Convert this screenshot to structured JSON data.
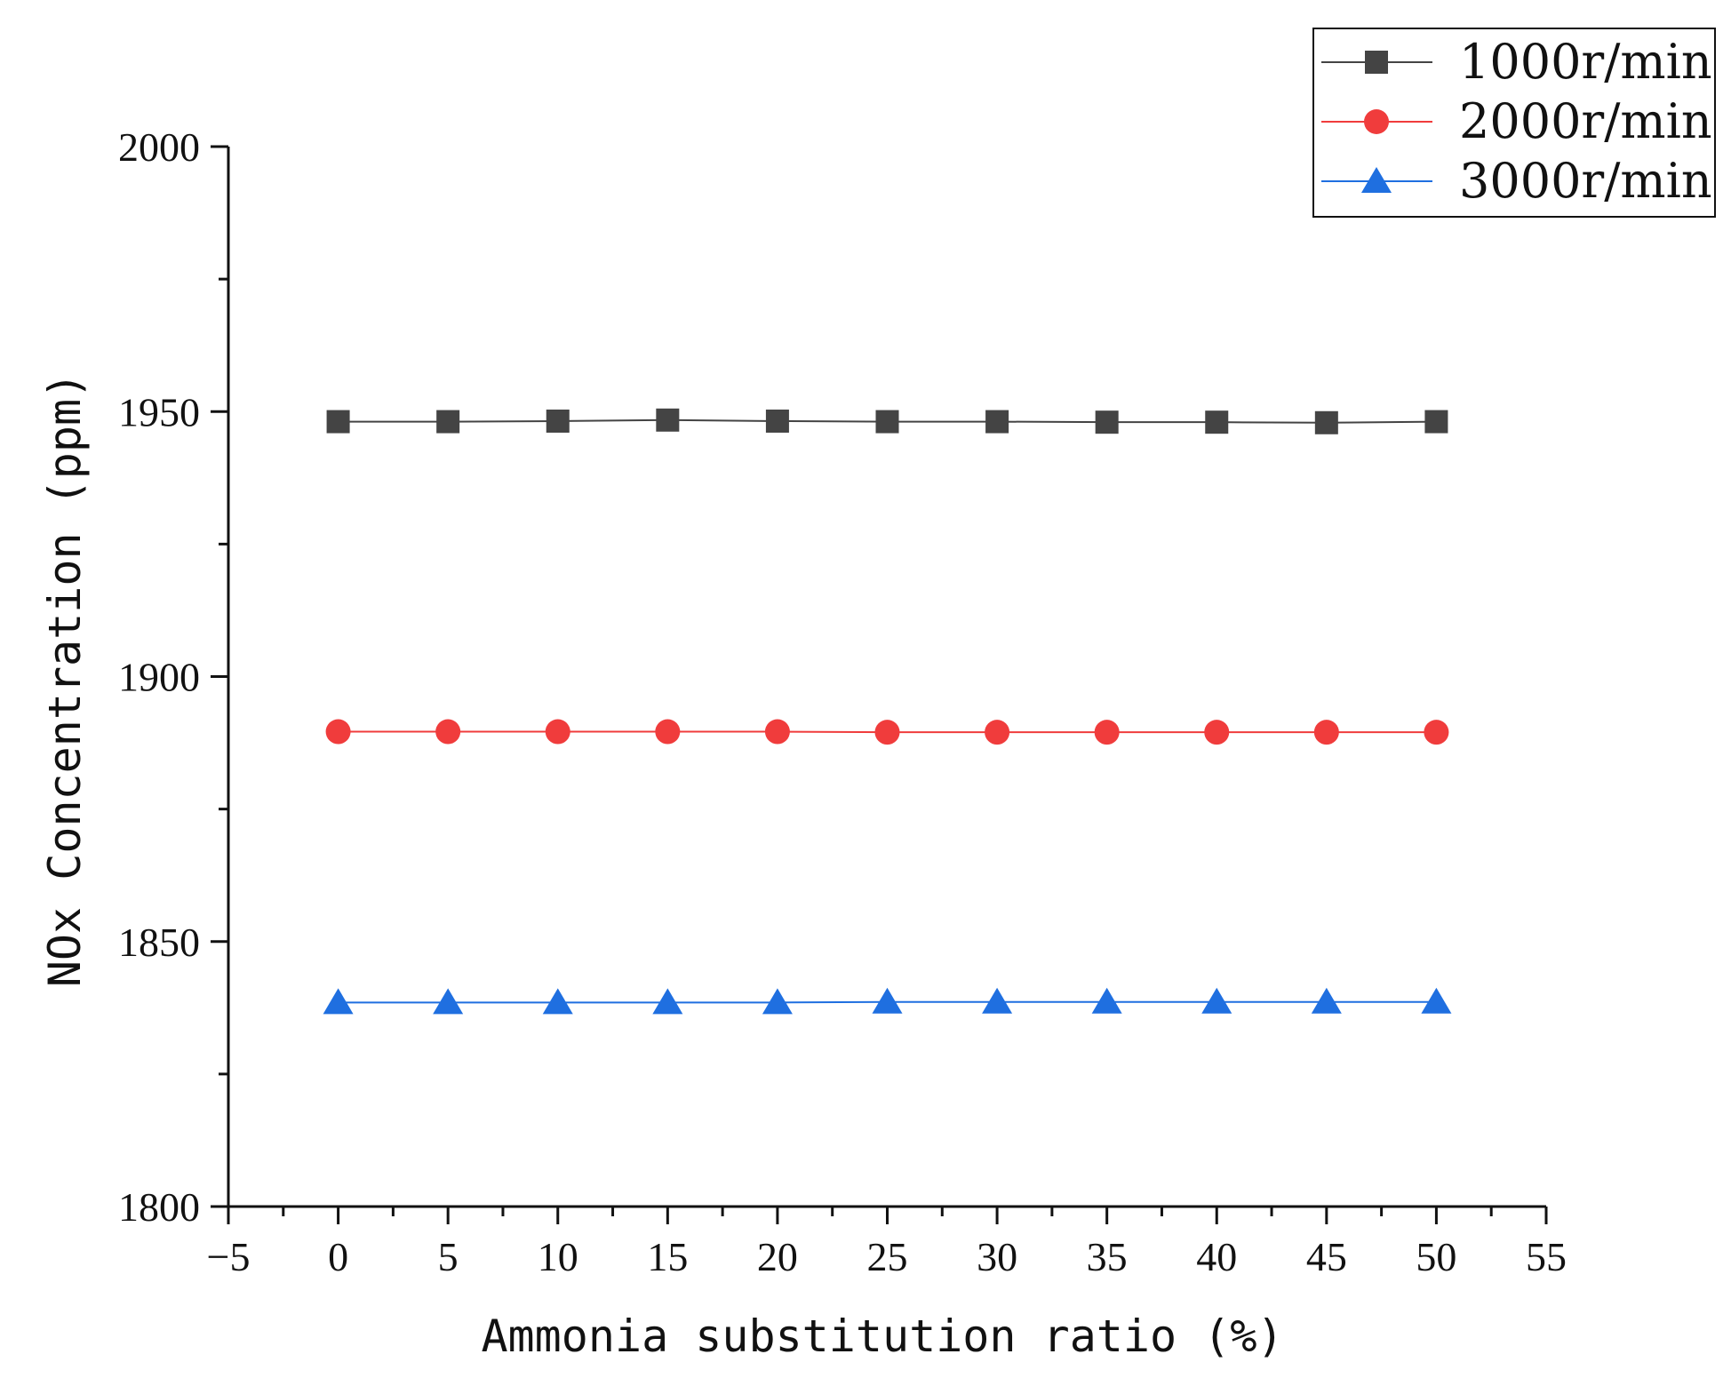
{
  "chart_data": {
    "type": "line",
    "title": "",
    "xlabel": "Ammonia substitution ratio (%)",
    "ylabel": "NOx Concentration (ppm)",
    "xlim": [
      -5,
      55
    ],
    "ylim": [
      1800,
      2000
    ],
    "x_ticks": [
      -5,
      0,
      5,
      10,
      15,
      20,
      25,
      30,
      35,
      40,
      45,
      50,
      55
    ],
    "x_tick_labels": [
      "−5",
      "0",
      "5",
      "10",
      "15",
      "20",
      "25",
      "30",
      "35",
      "40",
      "45",
      "50",
      "55"
    ],
    "y_ticks": [
      1800,
      1850,
      1900,
      1950,
      2000
    ],
    "y_tick_labels": [
      "1800",
      "1850",
      "1900",
      "1950",
      "2000"
    ],
    "grid": false,
    "legend_position": "top-right",
    "x": [
      0,
      5,
      10,
      15,
      20,
      25,
      30,
      35,
      40,
      45,
      50
    ],
    "series": [
      {
        "name": "1000r/min",
        "marker": "square",
        "color": "#444444",
        "values": [
          1948.1,
          1948.1,
          1948.2,
          1948.4,
          1948.2,
          1948.1,
          1948.1,
          1948.0,
          1948.0,
          1947.9,
          1948.1
        ]
      },
      {
        "name": "2000r/min",
        "marker": "circle",
        "color": "#f03c3c",
        "values": [
          1889.6,
          1889.6,
          1889.6,
          1889.6,
          1889.6,
          1889.5,
          1889.5,
          1889.5,
          1889.5,
          1889.5,
          1889.5
        ]
      },
      {
        "name": "3000r/min",
        "marker": "triangle",
        "color": "#1f6fe0",
        "values": [
          1838.5,
          1838.5,
          1838.5,
          1838.5,
          1838.5,
          1838.6,
          1838.6,
          1838.6,
          1838.6,
          1838.6,
          1838.6
        ]
      }
    ]
  }
}
